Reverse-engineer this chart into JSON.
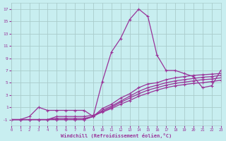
{
  "xlabel": "Windchill (Refroidissement éolien,°C)",
  "bg_color": "#c8eef0",
  "grid_color": "#aacccc",
  "line_color": "#993399",
  "xlim": [
    0,
    23
  ],
  "ylim": [
    -2,
    18
  ],
  "xticks": [
    0,
    1,
    2,
    3,
    4,
    5,
    6,
    7,
    8,
    9,
    10,
    11,
    12,
    13,
    14,
    15,
    16,
    17,
    18,
    19,
    20,
    21,
    22,
    23
  ],
  "yticks": [
    -1,
    1,
    3,
    5,
    7,
    9,
    11,
    13,
    15,
    17
  ],
  "lines": [
    {
      "x": [
        0,
        1,
        2,
        3,
        4,
        5,
        6,
        7,
        8,
        9,
        10,
        11,
        12,
        13,
        14,
        15,
        16,
        17,
        18,
        19,
        20,
        21,
        22,
        23
      ],
      "y": [
        -1,
        -1,
        -0.5,
        1.0,
        0.5,
        0.5,
        0.5,
        0.5,
        0.5,
        -0.5,
        5.2,
        10.0,
        12.2,
        15.3,
        17.0,
        15.8,
        9.5,
        7.0,
        7.0,
        6.5,
        6.0,
        4.2,
        4.5,
        7.0
      ]
    },
    {
      "x": [
        0,
        1,
        2,
        3,
        4,
        5,
        6,
        7,
        8,
        9,
        10,
        11,
        12,
        13,
        14,
        15,
        16,
        17,
        18,
        19,
        20,
        21,
        22,
        23
      ],
      "y": [
        -1,
        -1,
        -1,
        -1,
        -1,
        -1,
        -1,
        -1,
        -1,
        -0.5,
        0.8,
        1.5,
        2.5,
        3.2,
        4.2,
        4.8,
        5.0,
        5.5,
        5.8,
        6.0,
        6.2,
        6.3,
        6.4,
        6.5
      ]
    },
    {
      "x": [
        0,
        1,
        2,
        3,
        4,
        5,
        6,
        7,
        8,
        9,
        10,
        11,
        12,
        13,
        14,
        15,
        16,
        17,
        18,
        19,
        20,
        21,
        22,
        23
      ],
      "y": [
        -1,
        -1,
        -1,
        -1,
        -1,
        -1,
        -1,
        -1,
        -1,
        -0.5,
        0.5,
        1.2,
        2.0,
        2.8,
        3.6,
        4.2,
        4.6,
        5.0,
        5.3,
        5.5,
        5.7,
        5.9,
        6.0,
        6.2
      ]
    },
    {
      "x": [
        0,
        1,
        2,
        3,
        4,
        5,
        6,
        7,
        8,
        9,
        10,
        11,
        12,
        13,
        14,
        15,
        16,
        17,
        18,
        19,
        20,
        21,
        22,
        23
      ],
      "y": [
        -1,
        -1,
        -1,
        -1,
        -1,
        -0.8,
        -0.8,
        -0.8,
        -0.8,
        -0.5,
        0.3,
        1.0,
        1.8,
        2.5,
        3.2,
        3.8,
        4.2,
        4.6,
        4.9,
        5.1,
        5.3,
        5.5,
        5.6,
        5.8
      ]
    },
    {
      "x": [
        0,
        1,
        2,
        3,
        4,
        5,
        6,
        7,
        8,
        9,
        10,
        11,
        12,
        13,
        14,
        15,
        16,
        17,
        18,
        19,
        20,
        21,
        22,
        23
      ],
      "y": [
        -1,
        -1,
        -1,
        -1,
        -1,
        -0.5,
        -0.5,
        -0.5,
        -0.5,
        -0.3,
        0.2,
        0.8,
        1.5,
        2.1,
        2.8,
        3.3,
        3.8,
        4.2,
        4.5,
        4.7,
        4.9,
        5.0,
        5.2,
        5.4
      ]
    }
  ]
}
